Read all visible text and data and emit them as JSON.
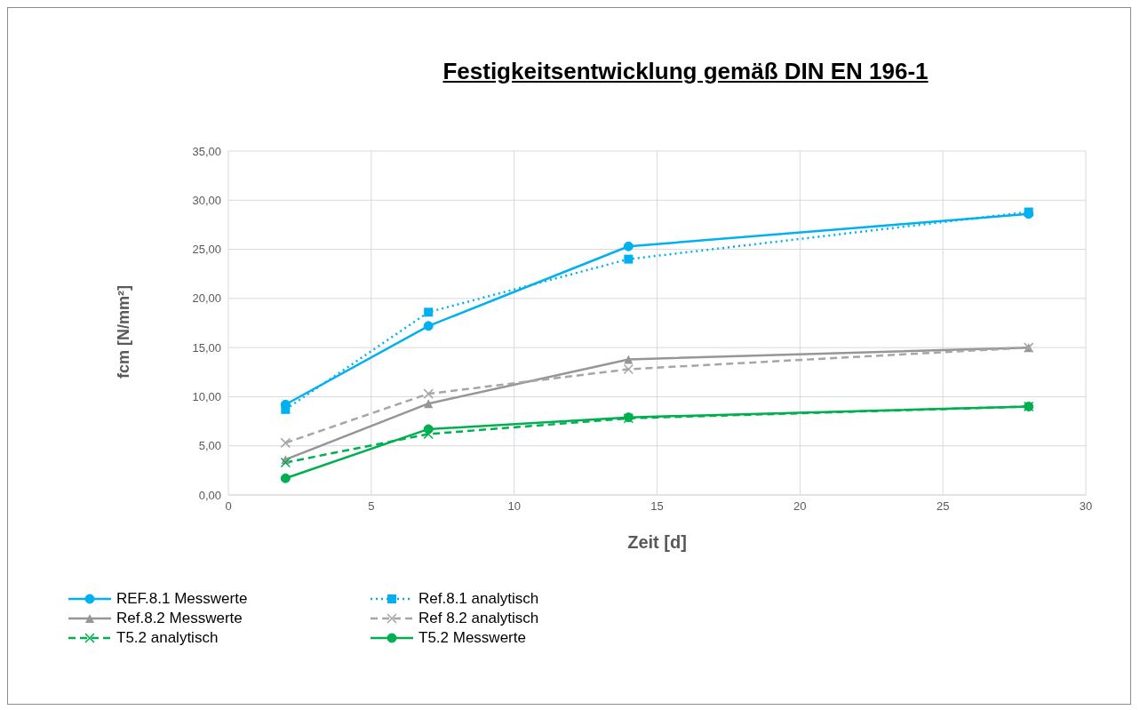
{
  "chart_data": {
    "type": "line",
    "title": "Festigkeitsentwicklung gemäß DIN EN 196-1",
    "xlabel": "Zeit  [d]",
    "ylabel": "fcm  [N/mm²]",
    "x": [
      2,
      7,
      14,
      28
    ],
    "series": [
      {
        "name": "REF.8.1 Messwerte",
        "color": "#00b0f0",
        "marker": "circle",
        "line_style": "solid",
        "values": [
          9.2,
          17.2,
          25.3,
          28.6
        ]
      },
      {
        "name": "Ref.8.1 analytisch",
        "color": "#00b0f0",
        "marker": "square",
        "line_style": "dotted",
        "values": [
          8.7,
          18.6,
          24.0,
          28.8
        ]
      },
      {
        "name": "Ref.8.2 Messwerte",
        "color": "#969696",
        "marker": "triangle",
        "line_style": "solid",
        "values": [
          3.6,
          9.3,
          13.8,
          15.0
        ]
      },
      {
        "name": "Ref 8.2 analytisch",
        "color": "#a6a6a6",
        "marker": "cross",
        "line_style": "dashed",
        "values": [
          5.3,
          10.3,
          12.8,
          15.0
        ]
      },
      {
        "name": "T5.2 analytisch",
        "color": "#00b050",
        "marker": "cross",
        "line_style": "dashed",
        "values": [
          3.3,
          6.2,
          7.8,
          9.0
        ]
      },
      {
        "name": "T5.2 Messwerte",
        "color": "#00b050",
        "marker": "circle",
        "line_style": "solid",
        "values": [
          1.7,
          6.7,
          7.9,
          9.0
        ]
      }
    ],
    "xlim": [
      0,
      30
    ],
    "xticks": [
      0,
      5,
      10,
      15,
      20,
      25,
      30
    ],
    "ylim": [
      0,
      35
    ],
    "yticks": [
      {
        "value": 0,
        "label": "0,00"
      },
      {
        "value": 5,
        "label": "5,00"
      },
      {
        "value": 10,
        "label": "10,00"
      },
      {
        "value": 15,
        "label": "15,00"
      },
      {
        "value": 20,
        "label": "20,00"
      },
      {
        "value": 25,
        "label": "25,00"
      },
      {
        "value": 30,
        "label": "30,00"
      },
      {
        "value": 35,
        "label": "35,00"
      }
    ],
    "grid": true,
    "legend": "bottom"
  }
}
